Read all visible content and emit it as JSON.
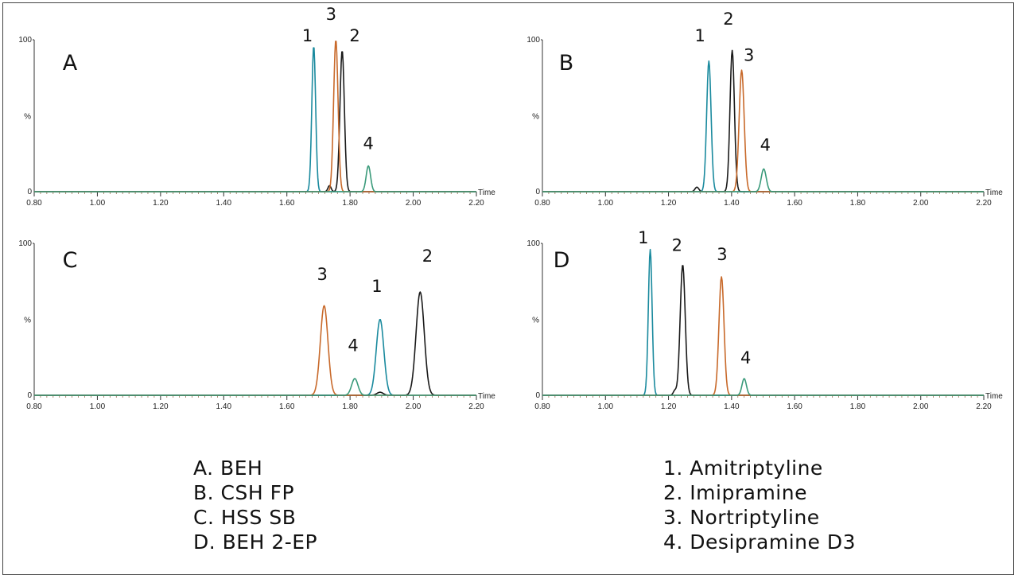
{
  "colors": {
    "amitriptyline": "#1a8a9e",
    "imipramine": "#1a1a1a",
    "nortriptyline": "#c8692a",
    "desipramine_d3": "#3a9a7a"
  },
  "legend_columns": {
    "items": [
      "A. BEH",
      "B. CSH FP",
      "C. HSS SB",
      "D. BEH 2-EP"
    ]
  },
  "legend_analytes": {
    "items": [
      "1. Amitriptyline",
      "2. Imipramine",
      "3. Nortriptyline",
      "4. Desipramine D3"
    ]
  },
  "chart_data": [
    {
      "type": "line",
      "panel": "A",
      "xlabel": "Time",
      "ylabel": "%",
      "xlim": [
        0.8,
        2.2
      ],
      "ylim": [
        0,
        100
      ],
      "x_ticks": [
        "0.80",
        "1.00",
        "1.20",
        "1.40",
        "1.60",
        "1.80",
        "2.00",
        "2.20"
      ],
      "y_ticks": [
        "0",
        "100"
      ],
      "series": [
        {
          "name": "1",
          "color_key": "amitriptyline",
          "peaks": [
            {
              "x": 1.685,
              "y": 96,
              "w": 0.006
            }
          ]
        },
        {
          "name": "2",
          "color_key": "imipramine",
          "peaks": [
            {
              "x": 1.775,
              "y": 93,
              "w": 0.007
            },
            {
              "x": 1.735,
              "y": 4,
              "w": 0.005
            }
          ]
        },
        {
          "name": "3",
          "color_key": "nortriptyline",
          "peaks": [
            {
              "x": 1.755,
              "y": 100,
              "w": 0.007
            }
          ]
        },
        {
          "name": "4",
          "color_key": "desipramine_d3",
          "peaks": [
            {
              "x": 1.858,
              "y": 17,
              "w": 0.007
            }
          ]
        }
      ],
      "peak_labels": [
        {
          "text": "1",
          "x": 1.665,
          "y": 99
        },
        {
          "text": "3",
          "x": 1.74,
          "y": 113
        },
        {
          "text": "2",
          "x": 1.815,
          "y": 99
        },
        {
          "text": "4",
          "x": 1.858,
          "y": 28
        }
      ]
    },
    {
      "type": "line",
      "panel": "B",
      "xlabel": "Time",
      "ylabel": "%",
      "xlim": [
        0.8,
        2.2
      ],
      "ylim": [
        0,
        100
      ],
      "x_ticks": [
        "0.80",
        "1.00",
        "1.20",
        "1.40",
        "1.60",
        "1.80",
        "2.00",
        "2.20"
      ],
      "y_ticks": [
        "0",
        "100"
      ],
      "series": [
        {
          "name": "1",
          "color_key": "amitriptyline",
          "peaks": [
            {
              "x": 1.328,
              "y": 86,
              "w": 0.007
            }
          ]
        },
        {
          "name": "2",
          "color_key": "imipramine",
          "peaks": [
            {
              "x": 1.402,
              "y": 93,
              "w": 0.007
            },
            {
              "x": 1.29,
              "y": 3,
              "w": 0.006
            }
          ]
        },
        {
          "name": "3",
          "color_key": "nortriptyline",
          "peaks": [
            {
              "x": 1.432,
              "y": 80,
              "w": 0.008
            }
          ]
        },
        {
          "name": "4",
          "color_key": "desipramine_d3",
          "peaks": [
            {
              "x": 1.502,
              "y": 15,
              "w": 0.008
            }
          ]
        }
      ],
      "peak_labels": [
        {
          "text": "1",
          "x": 1.3,
          "y": 99
        },
        {
          "text": "2",
          "x": 1.39,
          "y": 110
        },
        {
          "text": "3",
          "x": 1.455,
          "y": 86
        },
        {
          "text": "4",
          "x": 1.507,
          "y": 27
        }
      ]
    },
    {
      "type": "line",
      "panel": "C",
      "xlabel": "Time",
      "ylabel": "%",
      "xlim": [
        0.8,
        2.2
      ],
      "ylim": [
        0,
        100
      ],
      "x_ticks": [
        "0.80",
        "1.00",
        "1.20",
        "1.40",
        "1.60",
        "1.80",
        "2.00",
        "2.20"
      ],
      "y_ticks": [
        "0",
        "100"
      ],
      "series": [
        {
          "name": "1",
          "color_key": "amitriptyline",
          "peaks": [
            {
              "x": 1.895,
              "y": 50,
              "w": 0.012
            }
          ]
        },
        {
          "name": "2",
          "color_key": "imipramine",
          "peaks": [
            {
              "x": 2.022,
              "y": 68,
              "w": 0.013
            },
            {
              "x": 1.895,
              "y": 2,
              "w": 0.01
            }
          ]
        },
        {
          "name": "3",
          "color_key": "nortriptyline",
          "peaks": [
            {
              "x": 1.718,
              "y": 59,
              "w": 0.012
            }
          ]
        },
        {
          "name": "4",
          "color_key": "desipramine_d3",
          "peaks": [
            {
              "x": 1.815,
              "y": 11,
              "w": 0.01
            }
          ]
        }
      ],
      "peak_labels": [
        {
          "text": "3",
          "x": 1.712,
          "y": 76
        },
        {
          "text": "4",
          "x": 1.81,
          "y": 29
        },
        {
          "text": "1",
          "x": 1.885,
          "y": 68
        },
        {
          "text": "2",
          "x": 2.045,
          "y": 88
        }
      ]
    },
    {
      "type": "line",
      "panel": "D",
      "xlabel": "Time",
      "ylabel": "%",
      "xlim": [
        0.8,
        2.2
      ],
      "ylim": [
        0,
        100
      ],
      "x_ticks": [
        "0.80",
        "1.00",
        "1.20",
        "1.40",
        "1.60",
        "1.80",
        "2.00",
        "2.20"
      ],
      "y_ticks": [
        "0",
        "100"
      ],
      "series": [
        {
          "name": "1",
          "color_key": "amitriptyline",
          "peaks": [
            {
              "x": 1.142,
              "y": 96,
              "w": 0.006
            }
          ]
        },
        {
          "name": "2",
          "color_key": "imipramine",
          "peaks": [
            {
              "x": 1.245,
              "y": 86,
              "w": 0.008
            },
            {
              "x": 1.22,
              "y": 3,
              "w": 0.005
            }
          ]
        },
        {
          "name": "3",
          "color_key": "nortriptyline",
          "peaks": [
            {
              "x": 1.368,
              "y": 78,
              "w": 0.008
            }
          ]
        },
        {
          "name": "4",
          "color_key": "desipramine_d3",
          "peaks": [
            {
              "x": 1.44,
              "y": 11,
              "w": 0.007
            }
          ]
        }
      ],
      "peak_labels": [
        {
          "text": "1",
          "x": 1.12,
          "y": 100
        },
        {
          "text": "2",
          "x": 1.227,
          "y": 95
        },
        {
          "text": "3",
          "x": 1.37,
          "y": 89
        },
        {
          "text": "4",
          "x": 1.445,
          "y": 21
        }
      ]
    }
  ]
}
